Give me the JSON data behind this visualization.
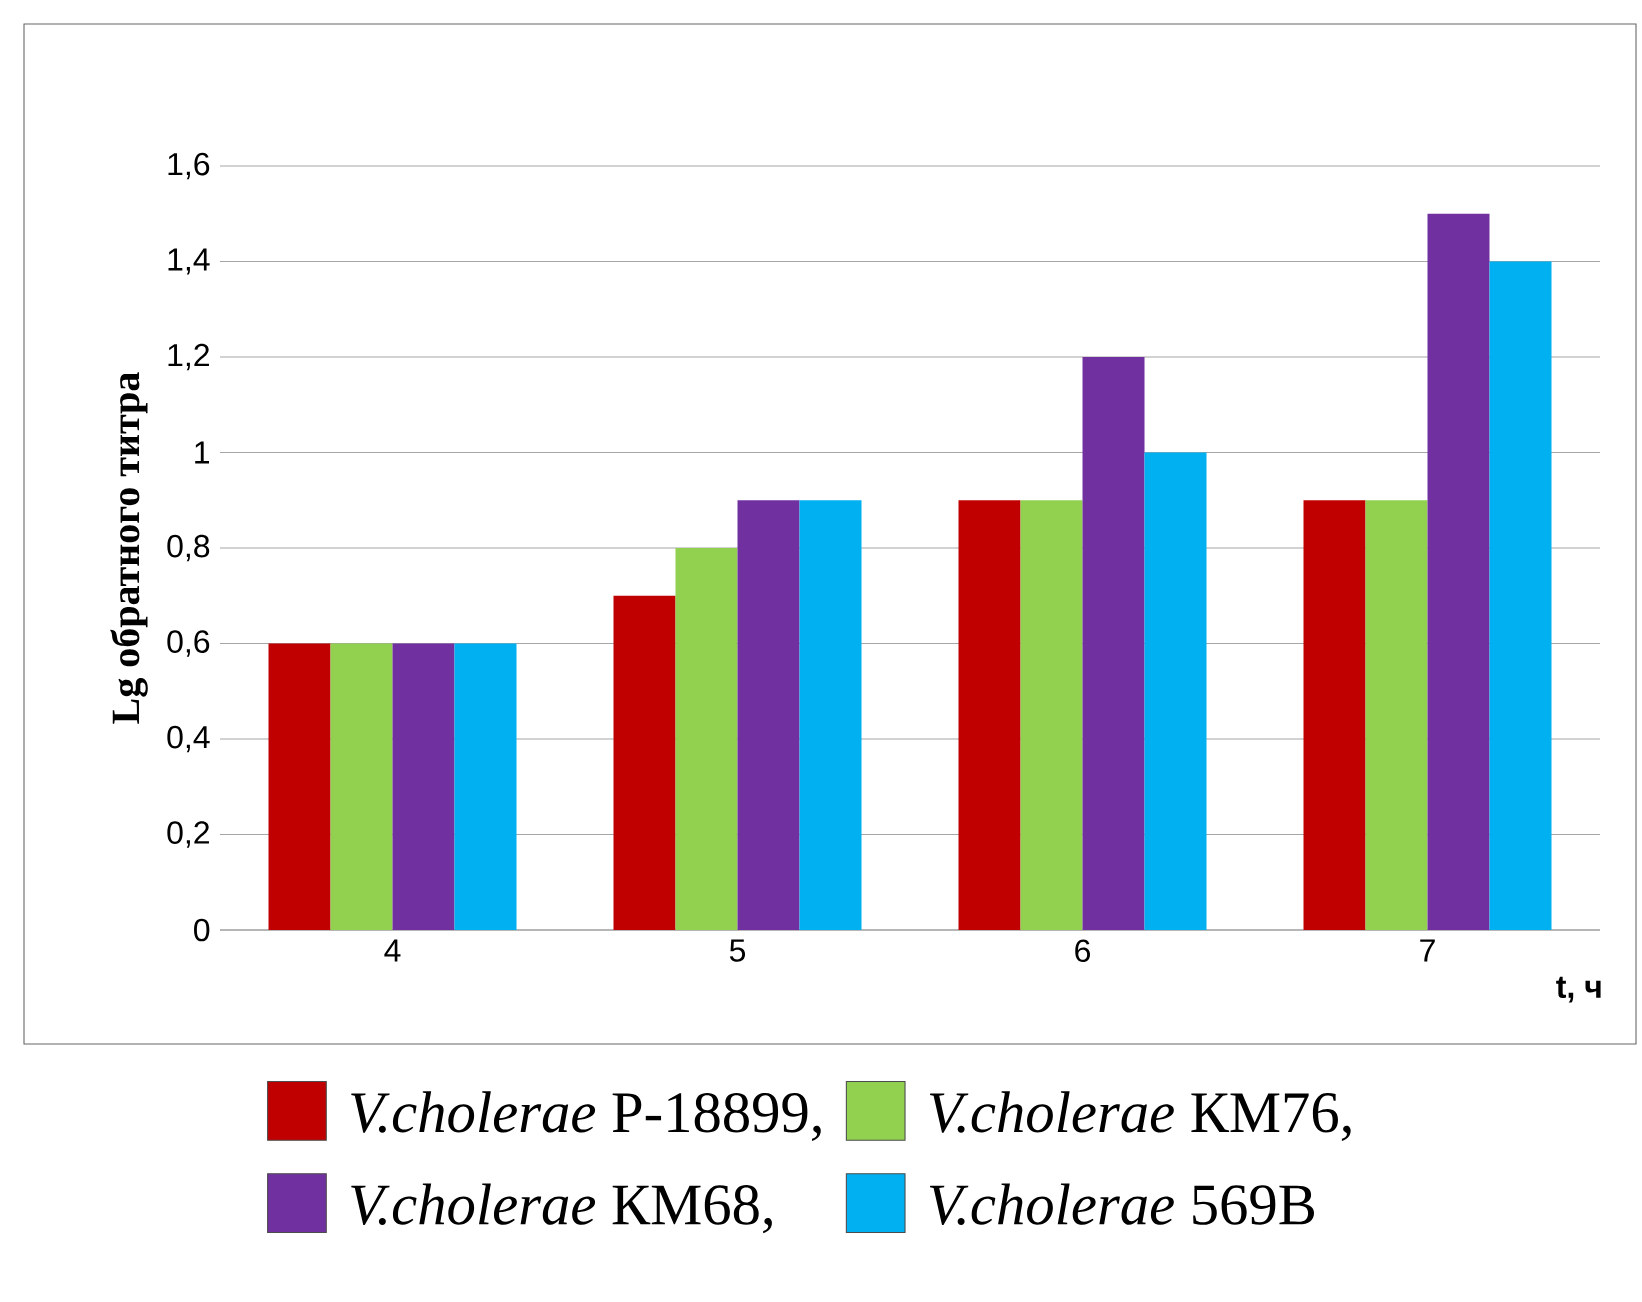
{
  "chart_data": {
    "type": "bar",
    "xlabel": "t, ч",
    "ylabel": "Lg обратного  титра",
    "categories": [
      "4",
      "5",
      "6",
      "7"
    ],
    "series": [
      {
        "name": "*V.cholerae* Р-18899,",
        "color": "#c00000",
        "values": [
          0.6,
          0.7,
          0.9,
          0.9
        ]
      },
      {
        "name": "*V.cholerae* КМ76,",
        "color": "#92d050",
        "values": [
          0.6,
          0.8,
          0.9,
          0.9
        ]
      },
      {
        "name": "*V.cholerae* КМ68,",
        "color": "#7030a0",
        "values": [
          0.6,
          0.9,
          1.2,
          1.5
        ]
      },
      {
        "name": "*V.cholerae* 569В",
        "color": "#00b0f0",
        "values": [
          0.6,
          0.9,
          1.0,
          1.4
        ]
      }
    ],
    "ylim": [
      0,
      1.6
    ],
    "yticks": [
      0,
      {
        "value": 0.2,
        "label": "0,2"
      },
      {
        "value": 0.4,
        "label": "0,4"
      },
      {
        "value": 0.6,
        "label": "0,6"
      },
      {
        "value": 0.8,
        "label": "0,8"
      },
      1,
      {
        "value": 1.2,
        "label": "1,2"
      },
      {
        "value": 1.4,
        "label": "1,4"
      },
      {
        "value": 1.6,
        "label": "1,6"
      }
    ],
    "grid": "y",
    "legend": "bottom"
  }
}
